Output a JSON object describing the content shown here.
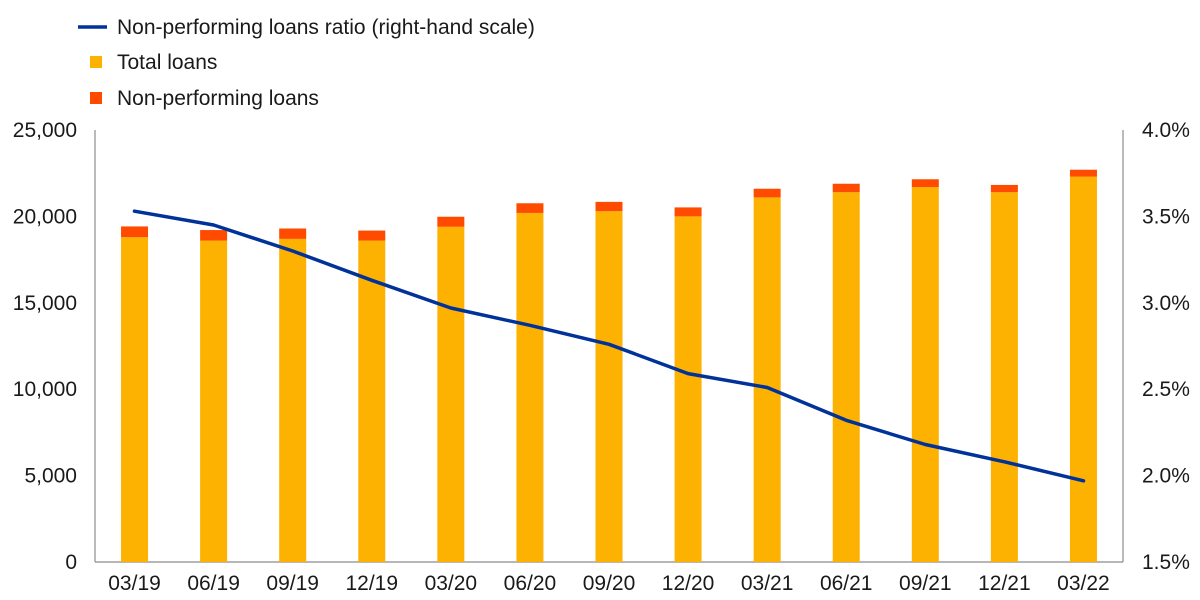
{
  "chart_data": {
    "type": "bar",
    "categories": [
      "03/19",
      "06/19",
      "09/19",
      "12/19",
      "03/20",
      "06/20",
      "09/20",
      "12/20",
      "03/21",
      "06/21",
      "09/21",
      "12/21",
      "03/22"
    ],
    "series": [
      {
        "name": "Total loans",
        "type": "bar",
        "axis": "left",
        "color": "#FDB100",
        "values": [
          18800,
          18600,
          18700,
          18600,
          19400,
          20200,
          20300,
          20000,
          21100,
          21400,
          21700,
          21400,
          22300
        ]
      },
      {
        "name": "Non-performing loans",
        "type": "bar",
        "axis": "left",
        "stacked_on": "Total loans",
        "color": "#FF4B00",
        "values": [
          620,
          610,
          600,
          580,
          580,
          560,
          540,
          520,
          500,
          490,
          450,
          420,
          400
        ]
      },
      {
        "name": "Non-performing loans ratio (right-hand scale)",
        "type": "line",
        "axis": "right",
        "color": "#003299",
        "values": [
          3.53,
          3.45,
          3.3,
          3.13,
          2.97,
          2.87,
          2.76,
          2.59,
          2.51,
          2.32,
          2.18,
          2.08,
          1.97
        ]
      }
    ],
    "y_left": {
      "min": 0,
      "max": 25000,
      "ticks": [
        0,
        5000,
        10000,
        15000,
        20000,
        25000
      ],
      "tick_labels": [
        "0",
        "5,000",
        "10,000",
        "15,000",
        "20,000",
        "25,000"
      ]
    },
    "y_right": {
      "min": 1.5,
      "max": 4.0,
      "ticks": [
        1.5,
        2.0,
        2.5,
        3.0,
        3.5,
        4.0
      ],
      "tick_labels": [
        "1.5%",
        "2.0%",
        "2.5%",
        "3.0%",
        "3.5%",
        "4.0%"
      ]
    },
    "legend": {
      "position": "top-left",
      "items": [
        {
          "label": "Non-performing loans ratio (right-hand scale)",
          "marker": "line",
          "color": "#003299"
        },
        {
          "label": "Total loans",
          "marker": "square",
          "color": "#FDB100"
        },
        {
          "label": "Non-performing loans",
          "marker": "square",
          "color": "#FF4B00"
        }
      ]
    },
    "grid": false,
    "title": "",
    "xlabel": "",
    "ylabel": ""
  }
}
